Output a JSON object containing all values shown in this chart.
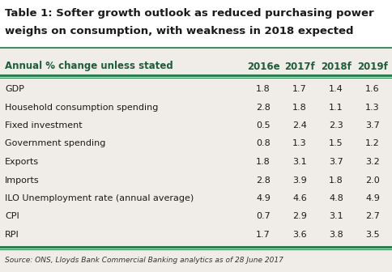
{
  "title_line1": "Table 1: Softer growth outlook as reduced purchasing power",
  "title_line2": "weighs on consumption, with weakness in 2018 expected",
  "header_col": "Annual % change unless stated",
  "years": [
    "2016e",
    "2017f",
    "2018f",
    "2019f"
  ],
  "rows": [
    {
      "label": "GDP",
      "values": [
        1.8,
        1.7,
        1.4,
        1.6
      ]
    },
    {
      "label": "Household consumption spending",
      "values": [
        2.8,
        1.8,
        1.1,
        1.3
      ]
    },
    {
      "label": "Fixed investment",
      "values": [
        0.5,
        2.4,
        2.3,
        3.7
      ]
    },
    {
      "label": "Government spending",
      "values": [
        0.8,
        1.3,
        1.5,
        1.2
      ]
    },
    {
      "label": "Exports",
      "values": [
        1.8,
        3.1,
        3.7,
        3.2
      ]
    },
    {
      "label": "Imports",
      "values": [
        2.8,
        3.9,
        1.8,
        2.0
      ]
    },
    {
      "label": "ILO Unemployment rate (annual average)",
      "values": [
        4.9,
        4.6,
        4.8,
        4.9
      ]
    },
    {
      "label": "CPI",
      "values": [
        0.7,
        2.9,
        3.1,
        2.7
      ]
    },
    {
      "label": "RPI",
      "values": [
        1.7,
        3.6,
        3.8,
        3.5
      ]
    }
  ],
  "source": "Source: ONS, Lloyds Bank Commercial Banking analytics as of 28 June 2017",
  "bg_white": "#ffffff",
  "bg_table": "#f0ede8",
  "title_color": "#1a1a1a",
  "header_color": "#1e5c3a",
  "row_text_color": "#1a1a1a",
  "teal_line_color": "#2e7d50",
  "source_color": "#333333",
  "title_sep_color": "#4a8c6a"
}
